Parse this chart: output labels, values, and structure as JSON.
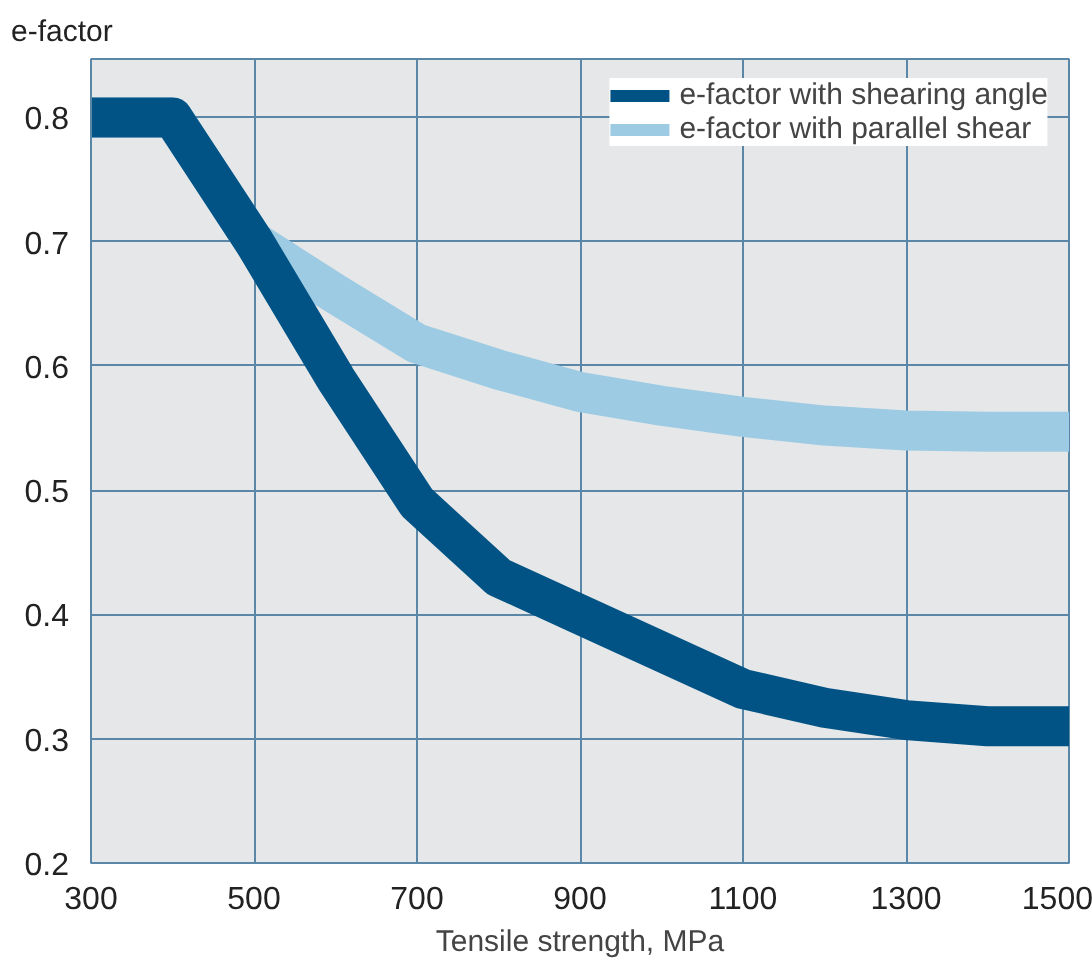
{
  "chart_data": {
    "type": "line",
    "xlabel": "Tensile strength, MPa",
    "ylabel": "e-factor",
    "xlim": [
      300,
      1500
    ],
    "ylim": [
      0.2,
      0.847
    ],
    "xticks": [
      300,
      500,
      700,
      900,
      1100,
      1300,
      1500
    ],
    "yticks": [
      0.2,
      0.3,
      0.4,
      0.5,
      0.6,
      0.7,
      0.8
    ],
    "grid": true,
    "legend": "top right",
    "series": [
      {
        "name": "e-factor with parallel shear",
        "color": "#9ccbe3",
        "x": [
          300,
          400,
          500,
          600,
          700,
          800,
          900,
          1000,
          1100,
          1200,
          1300,
          1400,
          1500
        ],
        "values": [
          0.8,
          0.8,
          0.7,
          0.658,
          0.618,
          0.597,
          0.579,
          0.568,
          0.559,
          0.552,
          0.548,
          0.547,
          0.547
        ]
      },
      {
        "name": "e-factor with shearing angle",
        "color": "#005384",
        "x": [
          300,
          400,
          500,
          600,
          700,
          800,
          900,
          1000,
          1100,
          1200,
          1300,
          1400,
          1500
        ],
        "values": [
          0.8,
          0.8,
          0.7,
          0.59,
          0.49,
          0.43,
          0.4,
          0.37,
          0.34,
          0.325,
          0.315,
          0.31,
          0.31
        ]
      }
    ]
  }
}
